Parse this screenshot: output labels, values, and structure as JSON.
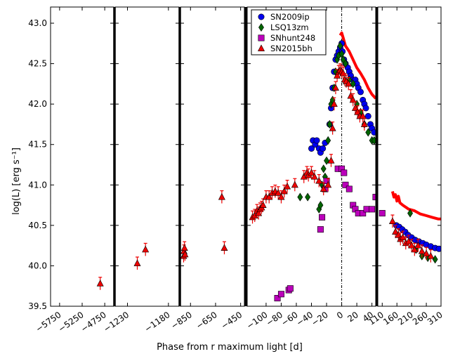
{
  "chart_data": {
    "type": "scatter",
    "xlabel": "Phase from r maximum light [d]",
    "ylabel": "log(L) [erg s⁻¹]",
    "ylim": [
      39.5,
      43.2
    ],
    "yticks": [
      "39.5",
      "40.0",
      "40.5",
      "41.0",
      "41.5",
      "42.0",
      "42.5",
      "43.0"
    ],
    "ytick_values": [
      39.5,
      40.0,
      40.5,
      41.0,
      41.5,
      42.0,
      42.5,
      43.0
    ],
    "legend_position": "top-left of panel 4",
    "panels": [
      {
        "xlim": [
          -5950,
          -4550
        ],
        "ticks": [
          {
            "v": -5750,
            "label": "−5750"
          },
          {
            "v": -5250,
            "label": "−5250"
          },
          {
            "v": -4750,
            "label": "−4750"
          }
        ]
      },
      {
        "xlim": [
          -1245,
          -1167
        ],
        "ticks": [
          {
            "v": -1230,
            "label": "−1230"
          },
          {
            "v": -1180,
            "label": "−1180"
          }
        ]
      },
      {
        "xlim": [
          -930,
          -420
        ],
        "ticks": [
          {
            "v": -850,
            "label": "−850"
          },
          {
            "v": -650,
            "label": "−650"
          },
          {
            "v": -450,
            "label": "−450"
          }
        ]
      },
      {
        "xlim": [
          -125,
          45
        ],
        "ticks": [
          {
            "v": -100,
            "label": "−100"
          },
          {
            "v": -80,
            "label": "−80"
          },
          {
            "v": -60,
            "label": "−60"
          },
          {
            "v": -40,
            "label": "−40"
          },
          {
            "v": -20,
            "label": "−20"
          },
          {
            "v": 0,
            "label": "0"
          },
          {
            "v": 20,
            "label": "20"
          },
          {
            "v": 40,
            "label": "40"
          }
        ],
        "vline": 0
      },
      {
        "xlim": [
          95,
          310
        ],
        "ticks": [
          {
            "v": 110,
            "label": "110"
          },
          {
            "v": 160,
            "label": "160"
          },
          {
            "v": 210,
            "label": "210"
          },
          {
            "v": 260,
            "label": "260"
          },
          {
            "v": 310,
            "label": "310"
          }
        ]
      }
    ],
    "series": [
      {
        "name": "SN2009ip",
        "marker": "circle",
        "color": "#0000ee",
        "points": [
          [
            -40,
            41.45
          ],
          [
            -38,
            41.55
          ],
          [
            -35,
            41.5
          ],
          [
            -33,
            41.55
          ],
          [
            -30,
            41.45
          ],
          [
            -28,
            41.4
          ],
          [
            -25,
            41.45
          ],
          [
            -22,
            41.52
          ],
          [
            -16,
            41.75
          ],
          [
            -14,
            41.95
          ],
          [
            -12,
            42.2
          ],
          [
            -10,
            42.4
          ],
          [
            -8,
            42.55
          ],
          [
            -6,
            42.6
          ],
          [
            -4,
            42.65
          ],
          [
            -2,
            42.7
          ],
          [
            0,
            42.75
          ],
          [
            1,
            42.65
          ],
          [
            3,
            42.55
          ],
          [
            5,
            42.5
          ],
          [
            8,
            42.45
          ],
          [
            10,
            42.4
          ],
          [
            12,
            42.35
          ],
          [
            15,
            42.3
          ],
          [
            18,
            42.3
          ],
          [
            20,
            42.25
          ],
          [
            22,
            42.2
          ],
          [
            25,
            42.15
          ],
          [
            28,
            42.05
          ],
          [
            30,
            42.0
          ],
          [
            32,
            41.95
          ],
          [
            35,
            41.85
          ],
          [
            38,
            41.75
          ],
          [
            40,
            41.7
          ],
          [
            43,
            41.65
          ],
          [
            158,
            40.5
          ],
          [
            168,
            40.48
          ],
          [
            178,
            40.45
          ],
          [
            188,
            40.42
          ],
          [
            198,
            40.38
          ],
          [
            210,
            40.35
          ],
          [
            222,
            40.32
          ],
          [
            235,
            40.3
          ],
          [
            248,
            40.28
          ],
          [
            260,
            40.26
          ],
          [
            275,
            40.24
          ],
          [
            290,
            40.22
          ],
          [
            303,
            40.21
          ]
        ]
      },
      {
        "name": "LSQ13zm",
        "marker": "diamond",
        "color": "#006400",
        "points": [
          [
            -55,
            40.85
          ],
          [
            -45,
            40.85
          ],
          [
            -30,
            40.7
          ],
          [
            -28,
            40.75
          ],
          [
            -26,
            41.0
          ],
          [
            -24,
            41.2
          ],
          [
            -22,
            41.1
          ],
          [
            -20,
            41.3
          ],
          [
            -18,
            41.55
          ],
          [
            -16,
            41.75
          ],
          [
            -14,
            42.0
          ],
          [
            -12,
            42.05
          ],
          [
            -10,
            42.2
          ],
          [
            -8,
            42.4
          ],
          [
            -6,
            42.55
          ],
          [
            -4,
            42.6
          ],
          [
            -2,
            42.72
          ],
          [
            0,
            42.62
          ],
          [
            2,
            42.55
          ],
          [
            5,
            42.5
          ],
          [
            10,
            42.3
          ],
          [
            15,
            42.25
          ],
          [
            20,
            42.0
          ],
          [
            25,
            41.9
          ],
          [
            30,
            41.75
          ],
          [
            35,
            41.65
          ],
          [
            40,
            41.55
          ],
          [
            43,
            41.55
          ],
          [
            205,
            40.65
          ],
          [
            225,
            40.2
          ],
          [
            245,
            40.12
          ],
          [
            265,
            40.1
          ],
          [
            290,
            40.08
          ]
        ]
      },
      {
        "name": "SNhunt248",
        "marker": "square",
        "color": "#bb00bb",
        "points": [
          [
            -85,
            39.6
          ],
          [
            -80,
            39.65
          ],
          [
            -70,
            39.7
          ],
          [
            -68,
            39.72
          ],
          [
            -28,
            40.45
          ],
          [
            -26,
            40.6
          ],
          [
            -22,
            40.95
          ],
          [
            -20,
            41.05
          ],
          [
            -5,
            41.2
          ],
          [
            0,
            41.2
          ],
          [
            3,
            41.15
          ],
          [
            5,
            41.0
          ],
          [
            10,
            40.95
          ],
          [
            15,
            40.75
          ],
          [
            18,
            40.7
          ],
          [
            22,
            40.65
          ],
          [
            28,
            40.65
          ],
          [
            33,
            40.7
          ],
          [
            40,
            40.7
          ],
          [
            45,
            40.85
          ],
          [
            110,
            40.65
          ]
        ]
      },
      {
        "name": "SN2015bh",
        "marker": "triangle",
        "color": "#ee0000",
        "points": [
          [
            -4850,
            39.78
          ],
          [
            -1218,
            40.03
          ],
          [
            -1208,
            40.2
          ],
          [
            -905,
            40.12
          ],
          [
            -902,
            40.18
          ],
          [
            -898,
            40.22
          ],
          [
            -894,
            40.14
          ],
          [
            -600,
            40.85
          ],
          [
            -580,
            40.22
          ],
          [
            -118,
            40.6
          ],
          [
            -115,
            40.62
          ],
          [
            -112,
            40.68
          ],
          [
            -110,
            40.65
          ],
          [
            -108,
            40.7
          ],
          [
            -106,
            40.72
          ],
          [
            -104,
            40.75
          ],
          [
            -100,
            40.85
          ],
          [
            -96,
            40.85
          ],
          [
            -92,
            40.9
          ],
          [
            -88,
            40.92
          ],
          [
            -84,
            40.9
          ],
          [
            -80,
            40.85
          ],
          [
            -76,
            40.92
          ],
          [
            -72,
            40.98
          ],
          [
            -62,
            41.0
          ],
          [
            -50,
            41.1
          ],
          [
            -46,
            41.15
          ],
          [
            -44,
            41.12
          ],
          [
            -40,
            41.15
          ],
          [
            -36,
            41.1
          ],
          [
            -30,
            41.05
          ],
          [
            -24,
            40.95
          ],
          [
            -18,
            41.0
          ],
          [
            -14,
            41.3
          ],
          [
            -12,
            41.7
          ],
          [
            -10,
            42.0
          ],
          [
            -8,
            42.2
          ],
          [
            -6,
            42.35
          ],
          [
            -4,
            42.4
          ],
          [
            -2,
            42.42
          ],
          [
            0,
            42.4
          ],
          [
            2,
            42.38
          ],
          [
            4,
            42.3
          ],
          [
            6,
            42.28
          ],
          [
            9,
            42.25
          ],
          [
            12,
            42.1
          ],
          [
            15,
            42.05
          ],
          [
            18,
            41.95
          ],
          [
            21,
            41.9
          ],
          [
            24,
            41.85
          ],
          [
            28,
            41.85
          ],
          [
            30,
            41.75
          ],
          [
            145,
            40.55
          ],
          [
            155,
            40.42
          ],
          [
            165,
            40.38
          ],
          [
            172,
            40.33
          ],
          [
            180,
            40.35
          ],
          [
            190,
            40.28
          ],
          [
            200,
            40.3
          ],
          [
            210,
            40.25
          ],
          [
            220,
            40.2
          ],
          [
            232,
            40.25
          ],
          [
            245,
            40.18
          ],
          [
            260,
            40.15
          ],
          [
            275,
            40.12
          ]
        ]
      }
    ],
    "model_lines": [
      {
        "color": "#ff0000",
        "panel": 3,
        "points": [
          [
            -2,
            42.85
          ],
          [
            0,
            42.88
          ],
          [
            2,
            42.82
          ],
          [
            5,
            42.72
          ],
          [
            10,
            42.65
          ],
          [
            15,
            42.55
          ],
          [
            20,
            42.45
          ],
          [
            25,
            42.38
          ],
          [
            30,
            42.3
          ],
          [
            35,
            42.2
          ],
          [
            40,
            42.12
          ],
          [
            45,
            42.07
          ]
        ]
      },
      {
        "color": "#ff0000",
        "panel": 4,
        "points": [
          [
            145,
            40.92
          ],
          [
            150,
            40.85
          ],
          [
            155,
            40.88
          ],
          [
            160,
            40.8
          ],
          [
            165,
            40.86
          ],
          [
            170,
            40.78
          ],
          [
            180,
            40.75
          ],
          [
            200,
            40.7
          ],
          [
            220,
            40.68
          ],
          [
            240,
            40.64
          ],
          [
            260,
            40.62
          ],
          [
            280,
            40.6
          ],
          [
            300,
            40.58
          ],
          [
            310,
            40.58
          ]
        ]
      }
    ]
  }
}
